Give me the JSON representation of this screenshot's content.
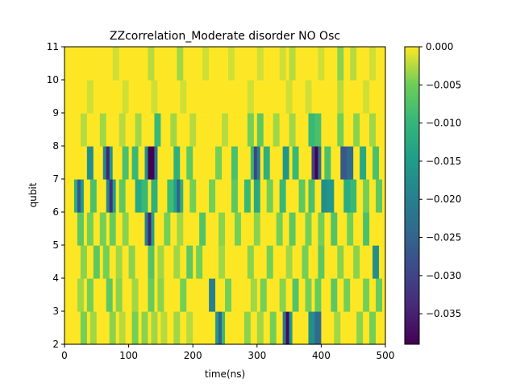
{
  "chart_data": {
    "type": "heatmap",
    "title": "ZZcorrelation_Moderate disorder NO Osc",
    "xlabel": "time(ns)",
    "ylabel": "qubit",
    "xlim": [
      0,
      500
    ],
    "ylim": [
      2,
      11
    ],
    "xticks": [
      "0",
      "100",
      "200",
      "300",
      "400",
      "500"
    ],
    "yticks": [
      "2",
      "3",
      "4",
      "5",
      "6",
      "7",
      "8",
      "9",
      "10",
      "11"
    ],
    "colormap": "viridis",
    "color_range": [
      -0.039,
      0.0
    ],
    "colorbar_ticks": [
      "0.000",
      "−0.005",
      "−0.010",
      "−0.015",
      "−0.020",
      "−0.025",
      "−0.030",
      "−0.035"
    ],
    "time_step_ns": 5,
    "rows": [
      {
        "qubit_band": "2-3",
        "events": [
          [
            30,
            0.006
          ],
          [
            45,
            0.004
          ],
          [
            75,
            0.005
          ],
          [
            90,
            0.003
          ],
          [
            110,
            0.006
          ],
          [
            125,
            0.005
          ],
          [
            140,
            0.004
          ],
          [
            155,
            0.003
          ],
          [
            175,
            0.004
          ],
          [
            195,
            0.003
          ],
          [
            240,
            0.02
          ],
          [
            245,
            0.012
          ],
          [
            285,
            0.005
          ],
          [
            305,
            0.004
          ],
          [
            325,
            0.006
          ],
          [
            345,
            0.028
          ],
          [
            350,
            0.02
          ],
          [
            385,
            0.022
          ],
          [
            395,
            0.03
          ],
          [
            425,
            0.004
          ],
          [
            460,
            0.005
          ],
          [
            480,
            0.006
          ]
        ]
      },
      {
        "qubit_band": "3-4",
        "events": [
          [
            25,
            0.004
          ],
          [
            40,
            0.006
          ],
          [
            70,
            0.008
          ],
          [
            85,
            0.005
          ],
          [
            110,
            0.004
          ],
          [
            135,
            0.007
          ],
          [
            150,
            0.005
          ],
          [
            185,
            0.006
          ],
          [
            230,
            0.025
          ],
          [
            255,
            0.006
          ],
          [
            295,
            0.004
          ],
          [
            310,
            0.006
          ],
          [
            340,
            0.005
          ],
          [
            360,
            0.009
          ],
          [
            380,
            0.006
          ],
          [
            395,
            0.007
          ],
          [
            420,
            0.008
          ],
          [
            440,
            0.006
          ],
          [
            470,
            0.006
          ],
          [
            490,
            0.007
          ]
        ]
      },
      {
        "qubit_band": "4-5",
        "events": [
          [
            30,
            0.005
          ],
          [
            50,
            0.008
          ],
          [
            65,
            0.006
          ],
          [
            85,
            0.004
          ],
          [
            105,
            0.005
          ],
          [
            135,
            0.009
          ],
          [
            150,
            0.004
          ],
          [
            175,
            0.004
          ],
          [
            195,
            0.008
          ],
          [
            210,
            0.006
          ],
          [
            245,
            0.004
          ],
          [
            290,
            0.005
          ],
          [
            320,
            0.006
          ],
          [
            350,
            0.004
          ],
          [
            375,
            0.006
          ],
          [
            400,
            0.008
          ],
          [
            430,
            0.005
          ],
          [
            455,
            0.005
          ],
          [
            485,
            0.022
          ]
        ]
      },
      {
        "qubit_band": "5-6",
        "events": [
          [
            25,
            0.008
          ],
          [
            40,
            0.006
          ],
          [
            60,
            0.006
          ],
          [
            75,
            0.007
          ],
          [
            95,
            0.005
          ],
          [
            130,
            0.026
          ],
          [
            135,
            0.018
          ],
          [
            160,
            0.006
          ],
          [
            180,
            0.004
          ],
          [
            215,
            0.009
          ],
          [
            245,
            0.005
          ],
          [
            270,
            0.006
          ],
          [
            300,
            0.005
          ],
          [
            335,
            0.006
          ],
          [
            355,
            0.008
          ],
          [
            380,
            0.006
          ],
          [
            400,
            0.006
          ],
          [
            420,
            0.009
          ],
          [
            445,
            0.006
          ],
          [
            470,
            0.01
          ]
        ]
      },
      {
        "qubit_band": "6-7",
        "events": [
          [
            25,
            0.02
          ],
          [
            20,
            0.015
          ],
          [
            45,
            0.01
          ],
          [
            70,
            0.024
          ],
          [
            75,
            0.018
          ],
          [
            90,
            0.008
          ],
          [
            115,
            0.016
          ],
          [
            125,
            0.012
          ],
          [
            140,
            0.014
          ],
          [
            165,
            0.011
          ],
          [
            175,
            0.018
          ],
          [
            180,
            0.014
          ],
          [
            200,
            0.006
          ],
          [
            230,
            0.006
          ],
          [
            265,
            0.008
          ],
          [
            285,
            0.012
          ],
          [
            300,
            0.016
          ],
          [
            320,
            0.006
          ],
          [
            340,
            0.012
          ],
          [
            370,
            0.008
          ],
          [
            385,
            0.01
          ],
          [
            405,
            0.022
          ],
          [
            415,
            0.02
          ],
          [
            440,
            0.015
          ],
          [
            450,
            0.012
          ],
          [
            470,
            0.006
          ],
          [
            490,
            0.008
          ]
        ]
      },
      {
        "qubit_band": "7-8",
        "events": [
          [
            40,
            0.022
          ],
          [
            65,
            0.024
          ],
          [
            70,
            0.02
          ],
          [
            95,
            0.01
          ],
          [
            110,
            0.012
          ],
          [
            130,
            0.022
          ],
          [
            135,
            0.035
          ],
          [
            140,
            0.028
          ],
          [
            175,
            0.014
          ],
          [
            195,
            0.008
          ],
          [
            240,
            0.006
          ],
          [
            265,
            0.01
          ],
          [
            295,
            0.012
          ],
          [
            300,
            0.026
          ],
          [
            315,
            0.014
          ],
          [
            345,
            0.02
          ],
          [
            360,
            0.012
          ],
          [
            390,
            0.038
          ],
          [
            395,
            0.03
          ],
          [
            410,
            0.01
          ],
          [
            435,
            0.034
          ],
          [
            445,
            0.03
          ],
          [
            465,
            0.016
          ],
          [
            485,
            0.01
          ]
        ]
      },
      {
        "qubit_band": "8-9",
        "events": [
          [
            30,
            0.003
          ],
          [
            60,
            0.004
          ],
          [
            90,
            0.003
          ],
          [
            115,
            0.004
          ],
          [
            145,
            0.012
          ],
          [
            170,
            0.004
          ],
          [
            200,
            0.003
          ],
          [
            250,
            0.003
          ],
          [
            290,
            0.006
          ],
          [
            305,
            0.008
          ],
          [
            330,
            0.004
          ],
          [
            355,
            0.004
          ],
          [
            385,
            0.012
          ],
          [
            395,
            0.01
          ],
          [
            430,
            0.006
          ],
          [
            455,
            0.005
          ],
          [
            480,
            0.004
          ]
        ]
      },
      {
        "qubit_band": "9-10",
        "events": [
          [
            40,
            0.002
          ],
          [
            95,
            0.002
          ],
          [
            140,
            0.002
          ],
          [
            185,
            0.002
          ],
          [
            290,
            0.002
          ],
          [
            350,
            0.002
          ],
          [
            380,
            0.002
          ],
          [
            430,
            0.003
          ],
          [
            470,
            0.002
          ]
        ]
      },
      {
        "qubit_band": "10-11",
        "events": [
          [
            80,
            0.002
          ],
          [
            135,
            0.003
          ],
          [
            180,
            0.004
          ],
          [
            220,
            0.002
          ],
          [
            260,
            0.002
          ],
          [
            305,
            0.002
          ],
          [
            340,
            0.002
          ],
          [
            355,
            0.003
          ],
          [
            400,
            0.002
          ],
          [
            430,
            0.005
          ],
          [
            450,
            0.003
          ],
          [
            480,
            0.002
          ]
        ]
      }
    ]
  }
}
